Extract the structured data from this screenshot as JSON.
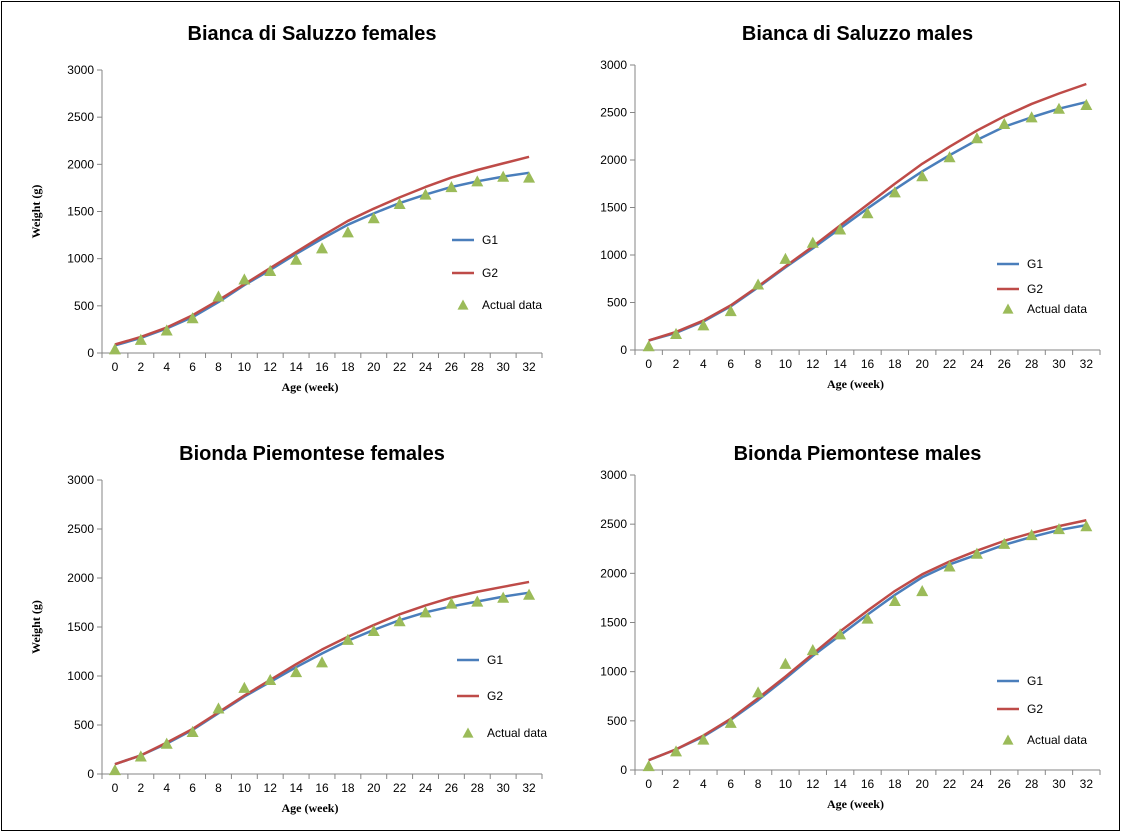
{
  "colors": {
    "g1": "#4a7ebb",
    "g2": "#be4b48",
    "actual": "#9bbb59",
    "axis": "#868686"
  },
  "chart_data": [
    {
      "type": "line",
      "title": "Bianca di Saluzzo females",
      "xlabel": "Age (week)",
      "ylabel": "Weight (g)",
      "x": [
        0,
        2,
        4,
        6,
        8,
        10,
        12,
        14,
        16,
        18,
        20,
        22,
        24,
        26,
        28,
        30,
        32
      ],
      "ylim": [
        0,
        3000
      ],
      "yticks": [
        0,
        500,
        1000,
        1500,
        2000,
        2500,
        3000
      ],
      "legend_position": "right",
      "series": [
        {
          "name": "G1",
          "marker": "line",
          "values": [
            80,
            160,
            260,
            380,
            540,
            720,
            880,
            1050,
            1210,
            1360,
            1480,
            1590,
            1680,
            1760,
            1820,
            1870,
            1910
          ]
        },
        {
          "name": "G2",
          "marker": "line",
          "values": [
            90,
            170,
            270,
            400,
            560,
            730,
            900,
            1070,
            1240,
            1400,
            1530,
            1650,
            1760,
            1860,
            1940,
            2010,
            2080
          ]
        },
        {
          "name": "Actual data",
          "marker": "triangle",
          "values": [
            40,
            140,
            240,
            370,
            600,
            780,
            870,
            990,
            1110,
            1280,
            1430,
            1580,
            1680,
            1760,
            1820,
            1870,
            1860
          ]
        }
      ]
    },
    {
      "type": "line",
      "title": "Bianca di Saluzzo males",
      "xlabel": "Age (week)",
      "ylabel": "",
      "x": [
        0,
        2,
        4,
        6,
        8,
        10,
        12,
        14,
        16,
        18,
        20,
        22,
        24,
        26,
        28,
        30,
        32
      ],
      "ylim": [
        0,
        3000
      ],
      "yticks": [
        0,
        500,
        1000,
        1500,
        2000,
        2500,
        3000
      ],
      "legend_position": "right",
      "series": [
        {
          "name": "G1",
          "marker": "line",
          "values": [
            100,
            180,
            300,
            460,
            660,
            870,
            1070,
            1280,
            1490,
            1690,
            1880,
            2050,
            2210,
            2350,
            2450,
            2540,
            2610
          ]
        },
        {
          "name": "G2",
          "marker": "line",
          "values": [
            100,
            190,
            310,
            470,
            670,
            880,
            1090,
            1310,
            1530,
            1750,
            1960,
            2140,
            2310,
            2460,
            2590,
            2700,
            2800
          ]
        },
        {
          "name": "Actual data",
          "marker": "triangle",
          "values": [
            40,
            170,
            260,
            410,
            690,
            960,
            1130,
            1270,
            1440,
            1660,
            1830,
            2030,
            2230,
            2380,
            2450,
            2540,
            2580
          ]
        }
      ]
    },
    {
      "type": "line",
      "title": "Bionda Piemontese females",
      "xlabel": "Age (week)",
      "ylabel": "Weight (g)",
      "x": [
        0,
        2,
        4,
        6,
        8,
        10,
        12,
        14,
        16,
        18,
        20,
        22,
        24,
        26,
        28,
        30,
        32
      ],
      "ylim": [
        0,
        3000
      ],
      "yticks": [
        0,
        500,
        1000,
        1500,
        2000,
        2500,
        3000
      ],
      "legend_position": "right",
      "series": [
        {
          "name": "G1",
          "marker": "line",
          "values": [
            100,
            190,
            310,
            450,
            620,
            790,
            940,
            1090,
            1230,
            1360,
            1470,
            1570,
            1650,
            1710,
            1760,
            1810,
            1850
          ]
        },
        {
          "name": "G2",
          "marker": "line",
          "values": [
            100,
            190,
            320,
            460,
            630,
            800,
            960,
            1120,
            1270,
            1400,
            1520,
            1630,
            1720,
            1800,
            1860,
            1910,
            1960
          ]
        },
        {
          "name": "Actual data",
          "marker": "triangle",
          "values": [
            40,
            180,
            310,
            430,
            670,
            880,
            960,
            1040,
            1140,
            1370,
            1460,
            1560,
            1650,
            1740,
            1760,
            1800,
            1830
          ]
        }
      ]
    },
    {
      "type": "line",
      "title": "Bionda Piemontese males",
      "xlabel": "Age (week)",
      "ylabel": "",
      "x": [
        0,
        2,
        4,
        6,
        8,
        10,
        12,
        14,
        16,
        18,
        20,
        22,
        24,
        26,
        28,
        30,
        32
      ],
      "ylim": [
        0,
        3000
      ],
      "yticks": [
        0,
        500,
        1000,
        1500,
        2000,
        2500,
        3000
      ],
      "legend_position": "right",
      "series": [
        {
          "name": "G1",
          "marker": "line",
          "values": [
            100,
            210,
            340,
            510,
            710,
            930,
            1160,
            1370,
            1580,
            1780,
            1960,
            2090,
            2190,
            2290,
            2370,
            2440,
            2490
          ]
        },
        {
          "name": "G2",
          "marker": "line",
          "values": [
            100,
            210,
            350,
            520,
            730,
            950,
            1180,
            1410,
            1620,
            1820,
            1990,
            2120,
            2230,
            2330,
            2410,
            2480,
            2540
          ]
        },
        {
          "name": "Actual data",
          "marker": "triangle",
          "values": [
            40,
            190,
            310,
            480,
            790,
            1080,
            1220,
            1380,
            1540,
            1720,
            1820,
            2070,
            2200,
            2300,
            2390,
            2450,
            2480
          ]
        }
      ]
    }
  ]
}
